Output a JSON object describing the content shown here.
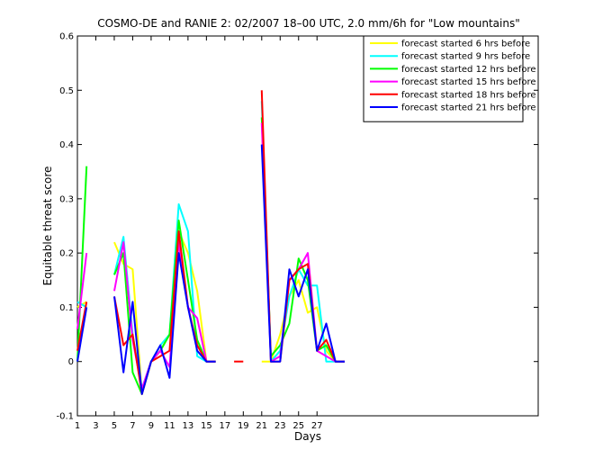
{
  "chart_data": {
    "type": "line",
    "title": "COSMO-DE and RANIE 2: 02/2007 18–00 UTC, 2.0 mm/6h for \"Low mountains\"",
    "xlabel": "Days",
    "ylabel": "Equitable threat score",
    "xlim": [
      1,
      51
    ],
    "ylim": [
      -0.1,
      0.6
    ],
    "xticks": [
      1,
      3,
      5,
      7,
      9,
      11,
      13,
      15,
      17,
      19,
      21,
      23,
      25,
      27
    ],
    "yticks": [
      -0.1,
      0,
      0.1,
      0.2,
      0.3,
      0.4,
      0.5,
      0.6
    ],
    "ytick_labels": [
      "-0.1",
      "0",
      "0.1",
      "0.2",
      "0.3",
      "0.4",
      "0.5",
      "0.6"
    ],
    "grid": false,
    "legend_position": "top-right",
    "series": [
      {
        "name": "forecast started 6 hrs before",
        "color": "#ffff00",
        "points": [
          [
            1,
            0.1
          ],
          [
            2,
            0.11
          ],
          null,
          [
            5,
            0.22
          ],
          [
            6,
            0.18
          ],
          [
            7,
            0.17
          ],
          [
            8,
            -0.06
          ],
          [
            9,
            0.0
          ],
          [
            10,
            0.02
          ],
          [
            11,
            0.05
          ],
          [
            12,
            0.24
          ],
          [
            13,
            0.2
          ],
          [
            14,
            0.13
          ],
          [
            15,
            0.0
          ],
          [
            16,
            0.0
          ],
          null,
          [
            21,
            0.0
          ],
          [
            22,
            0.0
          ],
          [
            23,
            0.05
          ],
          [
            24,
            0.12
          ],
          [
            25,
            0.15
          ],
          [
            26,
            0.09
          ],
          [
            27,
            0.1
          ],
          [
            28,
            0.02
          ],
          [
            29,
            0.0
          ],
          [
            30,
            0.0
          ]
        ]
      },
      {
        "name": "forecast started 9 hrs before",
        "color": "#00ffff",
        "points": [
          [
            1,
            0.11
          ],
          [
            2,
            0.1
          ],
          null,
          [
            5,
            0.16
          ],
          [
            6,
            0.23
          ],
          [
            7,
            0.05
          ],
          [
            8,
            -0.05
          ],
          [
            9,
            0.0
          ],
          [
            10,
            0.03
          ],
          [
            11,
            0.05
          ],
          [
            12,
            0.29
          ],
          [
            13,
            0.24
          ],
          [
            14,
            0.01
          ],
          [
            15,
            0.0
          ],
          [
            16,
            0.0
          ],
          null,
          [
            21,
            0.48
          ],
          [
            22,
            0.0
          ],
          [
            23,
            0.02
          ],
          [
            24,
            0.12
          ],
          [
            25,
            0.17
          ],
          [
            26,
            0.14
          ],
          [
            27,
            0.14
          ],
          [
            28,
            0.0
          ],
          [
            29,
            0.0
          ],
          [
            30,
            0.0
          ]
        ]
      },
      {
        "name": "forecast started 12 hrs before",
        "color": "#00ff00",
        "points": [
          [
            1,
            0.0
          ],
          [
            2,
            0.36
          ],
          null,
          [
            5,
            0.16
          ],
          [
            6,
            0.2
          ],
          [
            7,
            -0.02
          ],
          [
            8,
            -0.06
          ],
          [
            9,
            0.0
          ],
          [
            10,
            0.02
          ],
          [
            11,
            0.05
          ],
          [
            12,
            0.26
          ],
          [
            13,
            0.15
          ],
          [
            14,
            0.04
          ],
          [
            15,
            0.0
          ],
          [
            16,
            0.0
          ],
          null,
          [
            21,
            0.45
          ],
          [
            22,
            0.01
          ],
          [
            23,
            0.03
          ],
          [
            24,
            0.07
          ],
          [
            25,
            0.19
          ],
          [
            26,
            0.15
          ],
          [
            27,
            0.02
          ],
          [
            28,
            0.03
          ],
          [
            29,
            0.0
          ],
          [
            30,
            0.0
          ]
        ]
      },
      {
        "name": "forecast started 15 hrs before",
        "color": "#ff00ff",
        "points": [
          [
            1,
            0.06
          ],
          [
            2,
            0.2
          ],
          null,
          [
            5,
            0.13
          ],
          [
            6,
            0.22
          ],
          [
            7,
            0.04
          ],
          [
            8,
            -0.05
          ],
          [
            9,
            0.0
          ],
          [
            10,
            0.02
          ],
          [
            11,
            -0.01
          ],
          [
            12,
            0.22
          ],
          [
            13,
            0.1
          ],
          [
            14,
            0.08
          ],
          [
            15,
            0.0
          ],
          [
            16,
            0.0
          ],
          null,
          [
            21,
            0.44
          ],
          [
            22,
            0.0
          ],
          [
            23,
            0.01
          ],
          [
            24,
            0.15
          ],
          [
            25,
            0.17
          ],
          [
            26,
            0.2
          ],
          [
            27,
            0.02
          ],
          [
            28,
            0.01
          ],
          [
            29,
            0.0
          ],
          [
            30,
            0.0
          ]
        ]
      },
      {
        "name": "forecast started 18 hrs before",
        "color": "#ff0000",
        "points": [
          [
            1,
            0.02
          ],
          [
            2,
            0.11
          ],
          null,
          [
            5,
            0.12
          ],
          [
            6,
            0.03
          ],
          [
            7,
            0.05
          ],
          [
            8,
            -0.06
          ],
          [
            9,
            0.0
          ],
          [
            10,
            0.01
          ],
          [
            11,
            0.02
          ],
          [
            12,
            0.24
          ],
          [
            13,
            0.1
          ],
          [
            14,
            0.03
          ],
          [
            15,
            0.0
          ],
          [
            16,
            0.0
          ],
          null,
          [
            18,
            0.0
          ],
          [
            19,
            0.0
          ],
          null,
          [
            21,
            0.5
          ],
          [
            22,
            0.0
          ],
          [
            23,
            0.0
          ],
          [
            24,
            0.15
          ],
          [
            25,
            0.17
          ],
          [
            26,
            0.18
          ],
          [
            27,
            0.02
          ],
          [
            28,
            0.04
          ],
          [
            29,
            0.0
          ],
          [
            30,
            0.0
          ]
        ]
      },
      {
        "name": "forecast started 21 hrs before",
        "color": "#0000ff",
        "points": [
          [
            1,
            0.0
          ],
          [
            2,
            0.1
          ],
          null,
          [
            5,
            0.12
          ],
          [
            6,
            -0.02
          ],
          [
            7,
            0.11
          ],
          [
            8,
            -0.06
          ],
          [
            9,
            0.0
          ],
          [
            10,
            0.03
          ],
          [
            11,
            -0.03
          ],
          [
            12,
            0.2
          ],
          [
            13,
            0.1
          ],
          [
            14,
            0.02
          ],
          [
            15,
            0.0
          ],
          [
            16,
            0.0
          ],
          null,
          [
            21,
            0.4
          ],
          [
            22,
            0.0
          ],
          [
            23,
            0.0
          ],
          [
            24,
            0.17
          ],
          [
            25,
            0.12
          ],
          [
            26,
            0.17
          ],
          [
            27,
            0.02
          ],
          [
            28,
            0.07
          ],
          [
            29,
            0.0
          ],
          [
            30,
            0.0
          ]
        ]
      }
    ]
  }
}
